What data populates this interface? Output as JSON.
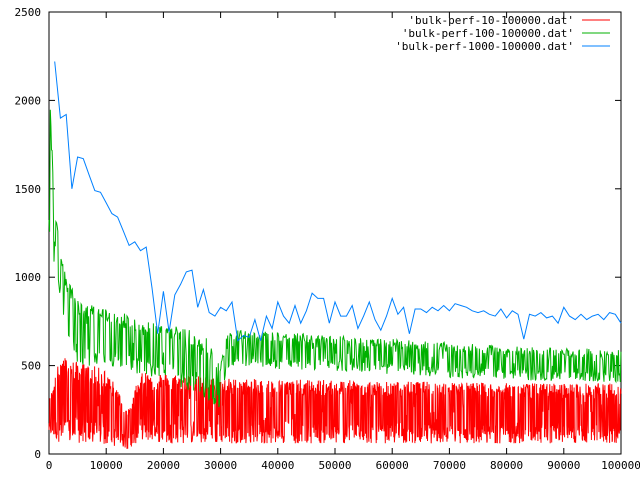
{
  "chart_data": {
    "type": "line",
    "title": "",
    "xlabel": "",
    "ylabel": "",
    "xlim": [
      0,
      100000
    ],
    "ylim": [
      0,
      2500
    ],
    "grid": false,
    "legend_position": "top-right",
    "x_ticks": [
      "0",
      "10000",
      "20000",
      "30000",
      "40000",
      "50000",
      "60000",
      "70000",
      "80000",
      "90000",
      "100000"
    ],
    "y_ticks": [
      "0",
      "500",
      "1000",
      "1500",
      "2000",
      "2500"
    ],
    "series": [
      {
        "name": "'bulk-perf-10-100000.dat'",
        "color": "#ff0000",
        "style": "dense-noisy",
        "x": [
          0,
          2000,
          5000,
          10000,
          14000,
          16000,
          20000,
          30000,
          40000,
          50000,
          60000,
          70000,
          80000,
          90000,
          100000
        ],
        "low": [
          120,
          60,
          60,
          50,
          30,
          80,
          60,
          60,
          60,
          60,
          60,
          60,
          60,
          60,
          60
        ],
        "high": [
          300,
          560,
          520,
          480,
          250,
          470,
          460,
          430,
          420,
          420,
          410,
          410,
          400,
          400,
          400
        ]
      },
      {
        "name": "'bulk-perf-100-100000.dat'",
        "color": "#00b000",
        "style": "dense-noisy",
        "x": [
          0,
          500,
          1000,
          2000,
          3000,
          5000,
          10000,
          15000,
          20000,
          25000,
          28000,
          30000,
          31000,
          35000,
          40000,
          50000,
          60000,
          70000,
          80000,
          90000,
          100000
        ],
        "low": [
          1200,
          900,
          1100,
          850,
          700,
          500,
          500,
          450,
          420,
          350,
          280,
          250,
          480,
          500,
          480,
          470,
          450,
          430,
          420,
          410,
          400
        ],
        "high": [
          2160,
          1750,
          1450,
          1150,
          1000,
          880,
          820,
          780,
          740,
          700,
          650,
          500,
          700,
          700,
          690,
          670,
          650,
          630,
          610,
          600,
          590
        ]
      },
      {
        "name": "'bulk-perf-1000-100000.dat'",
        "color": "#0080ff",
        "style": "line",
        "x": [
          1000,
          2000,
          3000,
          4000,
          5000,
          6000,
          7000,
          8000,
          9000,
          10000,
          11000,
          12000,
          13000,
          14000,
          15000,
          16000,
          17000,
          18000,
          19000,
          20000,
          21000,
          22000,
          23000,
          24000,
          25000,
          26000,
          27000,
          28000,
          29000,
          30000,
          31000,
          32000,
          33000,
          34000,
          35000,
          36000,
          37000,
          38000,
          39000,
          40000,
          41000,
          42000,
          43000,
          44000,
          45000,
          46000,
          47000,
          48000,
          49000,
          50000,
          51000,
          52000,
          53000,
          54000,
          55000,
          56000,
          57000,
          58000,
          59000,
          60000,
          61000,
          62000,
          63000,
          64000,
          65000,
          66000,
          67000,
          68000,
          69000,
          70000,
          71000,
          72000,
          73000,
          74000,
          75000,
          76000,
          77000,
          78000,
          79000,
          80000,
          81000,
          82000,
          83000,
          84000,
          85000,
          86000,
          87000,
          88000,
          89000,
          90000,
          91000,
          92000,
          93000,
          94000,
          95000,
          96000,
          97000,
          98000,
          99000,
          100000
        ],
        "y": [
          2220,
          1900,
          1920,
          1500,
          1680,
          1670,
          1580,
          1490,
          1480,
          1420,
          1360,
          1340,
          1260,
          1180,
          1200,
          1150,
          1170,
          940,
          680,
          920,
          690,
          900,
          960,
          1030,
          1040,
          830,
          930,
          800,
          780,
          830,
          810,
          860,
          640,
          670,
          660,
          760,
          640,
          780,
          710,
          860,
          780,
          740,
          840,
          740,
          810,
          910,
          880,
          880,
          740,
          860,
          780,
          780,
          840,
          710,
          780,
          860,
          760,
          700,
          780,
          880,
          790,
          830,
          680,
          820,
          820,
          800,
          830,
          810,
          840,
          810,
          850,
          840,
          830,
          810,
          800,
          810,
          790,
          780,
          820,
          770,
          810,
          790,
          650,
          790,
          780,
          800,
          770,
          780,
          740,
          830,
          780,
          760,
          790,
          760,
          780,
          790,
          760,
          800,
          790,
          740
        ]
      }
    ]
  }
}
